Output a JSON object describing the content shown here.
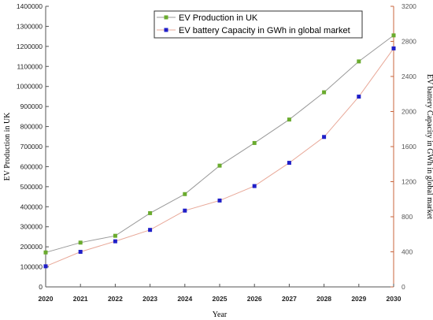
{
  "chart_data": {
    "type": "line",
    "xlabel": "Year",
    "ylabel_left": "EV Production in UK",
    "ylabel_right": "EV battery Capacity in GWh in global market",
    "x": [
      "2020",
      "2021",
      "2022",
      "2023",
      "2024",
      "2025",
      "2026",
      "2027",
      "2028",
      "2029",
      "2030"
    ],
    "y_left_lim": [
      0,
      1400000
    ],
    "y_left_ticks": [
      "0",
      "100000",
      "200000",
      "300000",
      "400000",
      "500000",
      "600000",
      "700000",
      "800000",
      "900000",
      "1000000",
      "1100000",
      "1200000",
      "1300000",
      "1400000"
    ],
    "y_right_lim": [
      0,
      3200
    ],
    "y_right_ticks": [
      "0",
      "400",
      "800",
      "1200",
      "1600",
      "2000",
      "2400",
      "2800",
      "3200"
    ],
    "legend_position": "top-right",
    "grid": false,
    "series": [
      {
        "name": "EV Production in UK",
        "axis": "left",
        "color": "#6aab2e",
        "line_color": "#999999",
        "marker": "square",
        "values": [
          172000,
          221000,
          255000,
          368000,
          463000,
          605000,
          718000,
          835000,
          971000,
          1125000,
          1255000
        ]
      },
      {
        "name": "EV battery Capacity in GWh in global market",
        "axis": "right",
        "color": "#1f1fc8",
        "line_color": "#e8a898",
        "marker": "square",
        "values": [
          235,
          400,
          520,
          650,
          870,
          985,
          1150,
          1415,
          1710,
          2170,
          2720
        ]
      }
    ]
  },
  "colors": {
    "right_axis": "#c8643c",
    "axis": "#555555"
  }
}
